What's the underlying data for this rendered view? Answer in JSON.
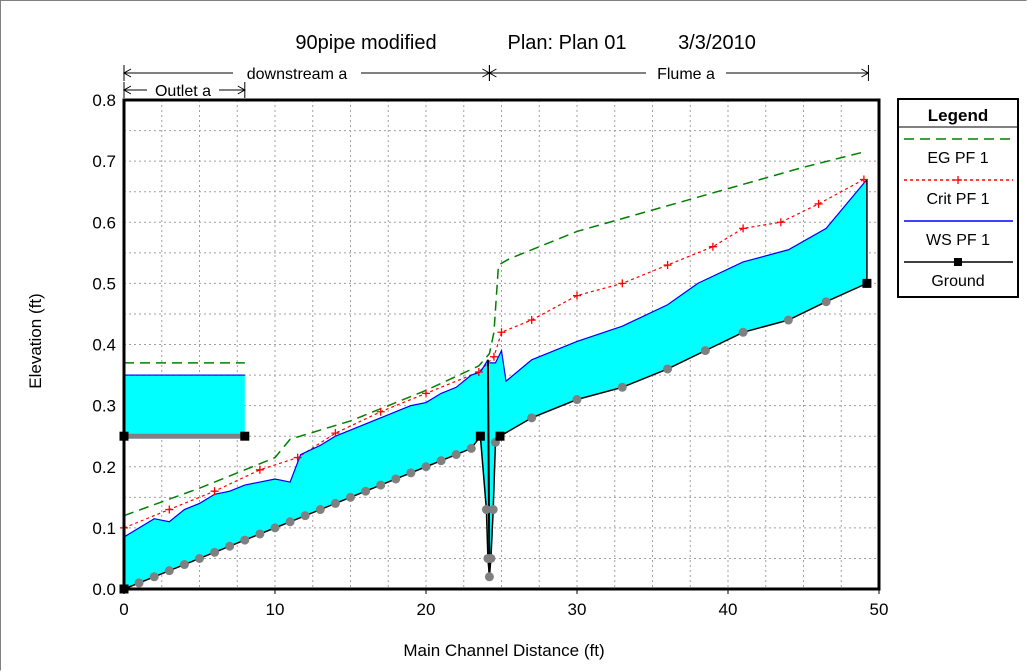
{
  "chart_data": {
    "type": "line",
    "title_parts": {
      "project": "90pipe modified",
      "plan": "Plan: Plan 01",
      "date": "3/3/2010"
    },
    "xlabel": "Main Channel Distance (ft)",
    "ylabel": "Elevation (ft)",
    "xlim": [
      0,
      50
    ],
    "ylim": [
      0,
      0.8
    ],
    "xticks": [
      0,
      10,
      20,
      30,
      40,
      50
    ],
    "yticks": [
      0.0,
      0.1,
      0.2,
      0.3,
      0.4,
      0.5,
      0.6,
      0.7,
      0.8
    ],
    "ytick_labels": [
      "0.0",
      "0.1",
      "0.2",
      "0.3",
      "0.4",
      "0.5",
      "0.6",
      "0.7",
      "0.8"
    ],
    "grid": true,
    "reaches": [
      {
        "name": "Outlet a",
        "start": 0,
        "end": 8
      },
      {
        "name": "downstream a",
        "start": 0,
        "end": 24.2
      },
      {
        "name": "Flume a",
        "start": 24.2,
        "end": 49.3
      }
    ],
    "legend": {
      "title": "Legend",
      "position": "right",
      "entries": [
        {
          "label": "EG  PF 1",
          "color": "#008000",
          "style": "dashed"
        },
        {
          "label": "Crit  PF 1",
          "color": "#ff0000",
          "style": "dotted-plus"
        },
        {
          "label": "WS  PF 1",
          "color": "#0000ff",
          "style": "solid"
        },
        {
          "label": "Ground",
          "color": "#000000",
          "style": "solid-square"
        }
      ]
    },
    "water_fill_color": "#00ffff",
    "series": [
      {
        "name": "EG  PF 1",
        "segments": [
          {
            "x": [
              0,
              8
            ],
            "y": [
              0.37,
              0.37
            ]
          },
          {
            "x": [
              0,
              5,
              10,
              11,
              15,
              20,
              23.5,
              24.2,
              24.5,
              24.8,
              25.5,
              30,
              35,
              40,
              45,
              49
            ],
            "y": [
              0.12,
              0.165,
              0.215,
              0.245,
              0.275,
              0.325,
              0.365,
              0.385,
              0.42,
              0.53,
              0.54,
              0.585,
              0.62,
              0.655,
              0.69,
              0.715
            ]
          }
        ]
      },
      {
        "name": "Crit  PF 1",
        "segments": [
          {
            "x": [
              0,
              8
            ],
            "y": [
              0.35,
              0.35
            ]
          },
          {
            "x": [
              0,
              3,
              6,
              9,
              11.5,
              14,
              17,
              20,
              23.5,
              24.5,
              25,
              27,
              30,
              33,
              36,
              39,
              41,
              43.5,
              46,
              49
            ],
            "y": [
              0.1,
              0.13,
              0.16,
              0.195,
              0.215,
              0.255,
              0.29,
              0.32,
              0.355,
              0.38,
              0.42,
              0.44,
              0.48,
              0.5,
              0.53,
              0.56,
              0.59,
              0.6,
              0.63,
              0.67
            ]
          }
        ]
      },
      {
        "name": "WS  PF 1",
        "segments": [
          {
            "x": [
              0,
              8
            ],
            "y": [
              0.35,
              0.35
            ]
          },
          {
            "x": [
              0,
              1,
              2,
              3,
              4,
              5,
              6,
              7,
              8,
              9,
              10,
              11,
              11.7,
              13,
              14,
              15,
              16,
              17,
              18,
              19,
              20,
              21,
              22,
              23,
              23.6,
              24.1
            ],
            "y": [
              0.085,
              0.1,
              0.115,
              0.11,
              0.13,
              0.14,
              0.155,
              0.16,
              0.17,
              0.175,
              0.18,
              0.175,
              0.22,
              0.235,
              0.25,
              0.26,
              0.27,
              0.28,
              0.29,
              0.3,
              0.305,
              0.32,
              0.33,
              0.35,
              0.355,
              0.375
            ]
          },
          {
            "x": [
              24.2,
              24.6,
              25,
              25.3,
              27,
              30,
              33,
              36,
              38,
              41,
              44,
              46.5,
              49.2
            ],
            "y": [
              0.37,
              0.37,
              0.39,
              0.34,
              0.375,
              0.405,
              0.43,
              0.465,
              0.5,
              0.535,
              0.555,
              0.59,
              0.67
            ]
          }
        ]
      },
      {
        "name": "Ground",
        "segments": [
          {
            "x": [
              0,
              8
            ],
            "y": [
              0.25,
              0.25
            ]
          },
          {
            "x": [
              0,
              1,
              2,
              3,
              4,
              5,
              6,
              7,
              8,
              9,
              10,
              11,
              12,
              13,
              14,
              15,
              16,
              17,
              18,
              19,
              20,
              21,
              22,
              23,
              23.6,
              24.0,
              24.1,
              24.2,
              24.3,
              24.45,
              24.6,
              24.9,
              27,
              30,
              33,
              36,
              38.5,
              41,
              44,
              46.5,
              49.2
            ],
            "y": [
              0.0,
              0.01,
              0.02,
              0.03,
              0.04,
              0.05,
              0.06,
              0.07,
              0.08,
              0.09,
              0.1,
              0.11,
              0.12,
              0.13,
              0.14,
              0.15,
              0.16,
              0.17,
              0.18,
              0.19,
              0.2,
              0.21,
              0.22,
              0.23,
              0.25,
              0.13,
              0.05,
              0.02,
              0.05,
              0.13,
              0.24,
              0.25,
              0.28,
              0.31,
              0.33,
              0.36,
              0.39,
              0.42,
              0.44,
              0.47,
              0.5
            ]
          }
        ],
        "square_markers": [
          [
            0,
            0.25
          ],
          [
            8,
            0.25
          ],
          [
            0,
            0.0
          ],
          [
            23.6,
            0.25
          ],
          [
            24.9,
            0.25
          ],
          [
            49.2,
            0.5
          ]
        ]
      }
    ]
  }
}
